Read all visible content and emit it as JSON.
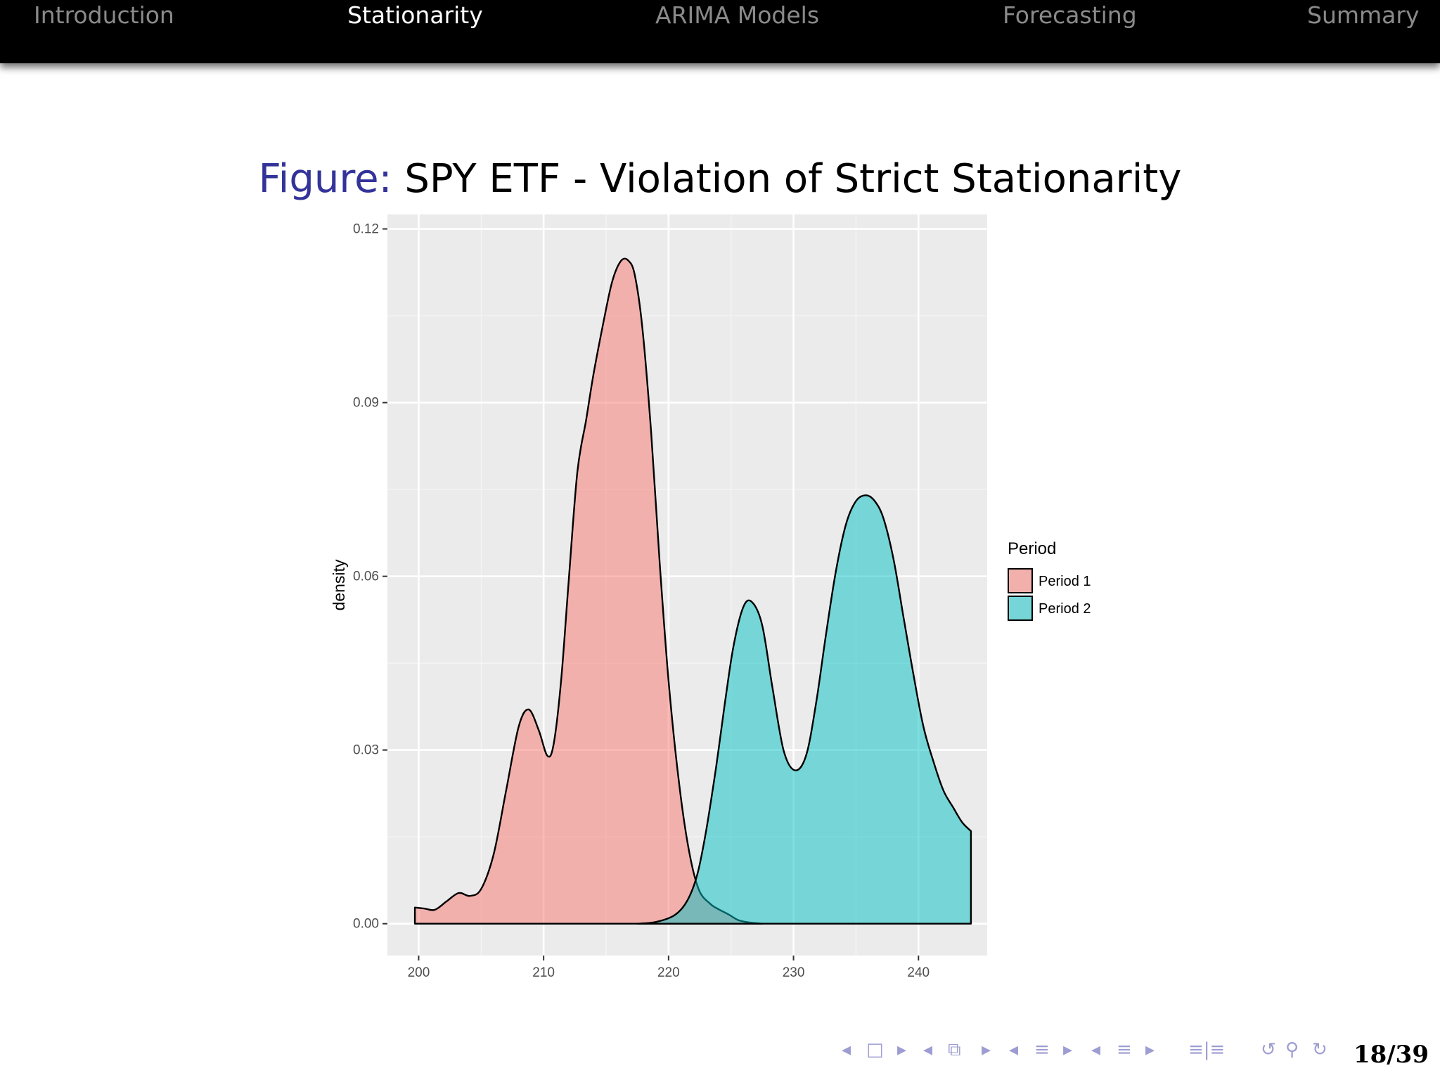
{
  "nav": {
    "items": [
      {
        "label": "Introduction",
        "active": false
      },
      {
        "label": "Stationarity",
        "active": true
      },
      {
        "label": "ARIMA Models",
        "active": false
      },
      {
        "label": "Forecasting",
        "active": false
      },
      {
        "label": "Summary",
        "active": false
      }
    ]
  },
  "caption": {
    "label": "Figure:",
    "text": "SPY ETF - Violation of Strict Stationarity"
  },
  "chart_data": {
    "type": "area",
    "title": "",
    "xlabel": "",
    "ylabel": "density",
    "xlim": [
      197.5,
      245.5
    ],
    "ylim": [
      -0.0055,
      0.1225
    ],
    "x_ticks": [
      200,
      210,
      220,
      230,
      240
    ],
    "y_ticks": [
      0.0,
      0.03,
      0.06,
      0.09,
      0.12
    ],
    "y_tick_labels": [
      "0.00",
      "0.03",
      "0.06",
      "0.09",
      "0.12"
    ],
    "grid": true,
    "legend": {
      "title": "Period",
      "position": "right"
    },
    "series": [
      {
        "name": "Period 1",
        "color": "#F8766D",
        "x": [
          199.7,
          200.5,
          201.3,
          202.2,
          203.2,
          204.1,
          205.0,
          206.0,
          207.0,
          208.0,
          208.8,
          209.6,
          210.3,
          210.8,
          211.4,
          212.0,
          212.7,
          213.4,
          214.0,
          214.8,
          215.5,
          216.2,
          216.8,
          217.3,
          217.9,
          218.6,
          219.3,
          220.0,
          220.8,
          221.6,
          222.4,
          223.3,
          224.0,
          224.8,
          225.6,
          226.5,
          227.5
        ],
        "y": [
          0.0028,
          0.0026,
          0.0024,
          0.0038,
          0.0053,
          0.0048,
          0.006,
          0.012,
          0.023,
          0.034,
          0.037,
          0.0335,
          0.029,
          0.031,
          0.042,
          0.059,
          0.078,
          0.087,
          0.095,
          0.104,
          0.111,
          0.1145,
          0.1145,
          0.112,
          0.103,
          0.085,
          0.062,
          0.042,
          0.025,
          0.013,
          0.006,
          0.0035,
          0.0025,
          0.0016,
          0.0006,
          0.0002,
          0.0
        ]
      },
      {
        "name": "Period 2",
        "color": "#00BFC4",
        "x": [
          217.5,
          219.0,
          220.5,
          221.5,
          222.3,
          223.0,
          223.8,
          224.5,
          225.2,
          226.0,
          226.7,
          227.5,
          228.3,
          229.2,
          230.1,
          231.0,
          231.8,
          232.6,
          233.4,
          234.2,
          235.0,
          235.8,
          236.5,
          237.2,
          238.0,
          238.8,
          239.6,
          240.4,
          241.2,
          242.0,
          242.8,
          243.5,
          244.2
        ],
        "y": [
          0.0,
          0.0003,
          0.0015,
          0.004,
          0.0085,
          0.016,
          0.027,
          0.038,
          0.048,
          0.0548,
          0.0555,
          0.0515,
          0.041,
          0.03,
          0.0265,
          0.029,
          0.038,
          0.05,
          0.061,
          0.069,
          0.073,
          0.074,
          0.073,
          0.07,
          0.063,
          0.053,
          0.043,
          0.034,
          0.028,
          0.023,
          0.02,
          0.0175,
          0.016
        ]
      }
    ]
  },
  "footer": {
    "nav_symbols": [
      "◂",
      "□",
      "▸",
      "◂",
      "⧉",
      "▸",
      "◂",
      "≡",
      "▸",
      "◂",
      "≡",
      "▸",
      "≡|≡",
      "↺",
      "⚲",
      "↻"
    ],
    "page": "18/39"
  }
}
